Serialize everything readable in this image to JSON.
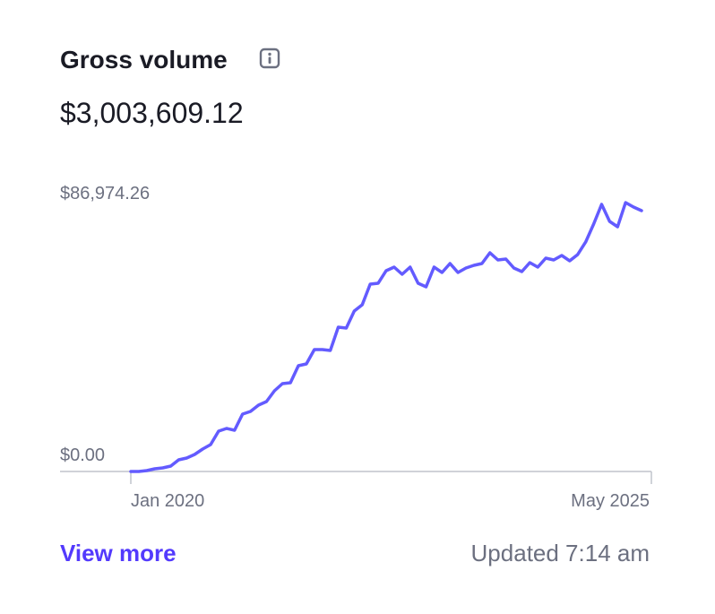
{
  "widget": {
    "title": "Gross volume",
    "amount": "$3,003,609.12",
    "link": "View more",
    "updated": "Updated 7:14 am"
  },
  "chart_data": {
    "type": "line",
    "color": "#635bff",
    "categories": [
      "Jan 2020",
      null,
      null,
      null,
      null,
      null,
      null,
      null,
      null,
      null,
      null,
      null,
      null,
      null,
      null,
      null,
      null,
      null,
      null,
      null,
      null,
      null,
      null,
      null,
      null,
      null,
      null,
      null,
      null,
      null,
      null,
      null,
      null,
      null,
      null,
      null,
      null,
      null,
      null,
      null,
      null,
      null,
      null,
      null,
      null,
      null,
      null,
      null,
      null,
      null,
      null,
      null,
      null,
      null,
      null,
      null,
      null,
      null,
      null,
      null,
      null,
      null,
      null,
      null,
      "May 2025"
    ],
    "values": [
      0,
      0,
      277,
      831,
      1108,
      1662,
      3601,
      4155,
      5263,
      6925,
      8310,
      12465,
      13296,
      12742,
      17728,
      18559,
      20498,
      21606,
      24930,
      27146,
      27423,
      32686,
      33240,
      37672,
      37672,
      37395,
      44597,
      44320,
      49583,
      51522,
      57893,
      58170,
      62048,
      63156,
      60940,
      63156,
      58170,
      57062,
      63156,
      61494,
      64264,
      61494,
      62879,
      63710,
      64264,
      67588,
      65372,
      65649,
      62879,
      61771,
      64541,
      63156,
      65926,
      65372,
      66757,
      65095,
      67034,
      70912,
      76452,
      82546,
      77283,
      75621,
      83100,
      81715,
      80607
    ],
    "ylim": [
      0,
      86974.26
    ],
    "yticks": [
      {
        "value": 0,
        "label": "$0.00"
      },
      {
        "value": 86974.26,
        "label": "$86,974.26"
      }
    ]
  }
}
